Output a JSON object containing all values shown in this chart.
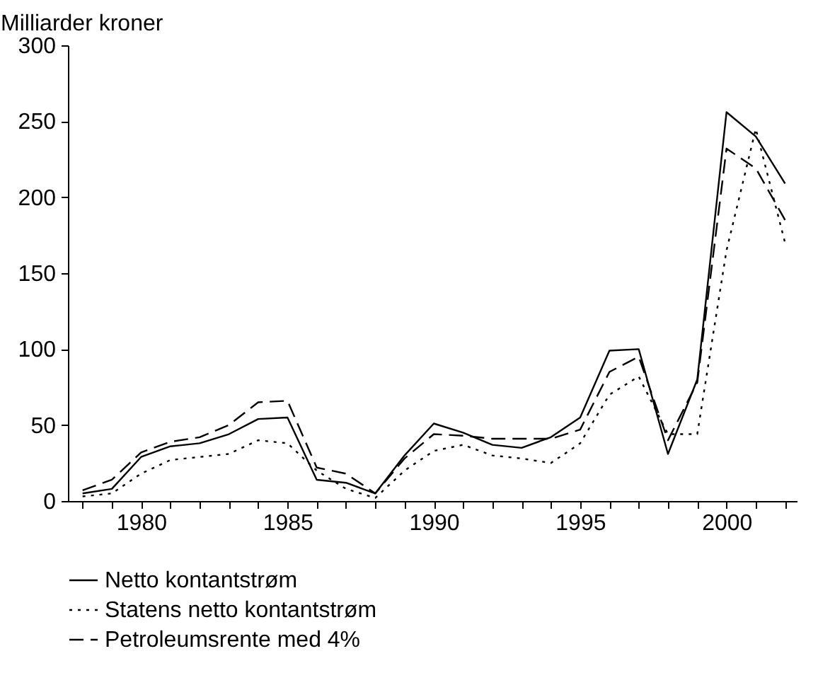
{
  "chart_data": {
    "type": "line",
    "ylabel": "Milliarder kroner",
    "x": [
      1978,
      1979,
      1980,
      1981,
      1982,
      1983,
      1984,
      1985,
      1986,
      1987,
      1988,
      1989,
      1990,
      1991,
      1992,
      1993,
      1994,
      1995,
      1996,
      1997,
      1998,
      1999,
      2000,
      2001,
      2002
    ],
    "series": [
      {
        "name": "Netto kontantstrøm",
        "color": "#000000",
        "line_style": "solid",
        "values": [
          5,
          8,
          29,
          36,
          38,
          44,
          54,
          55,
          14,
          12,
          5,
          30,
          51,
          45,
          37,
          35,
          42,
          55,
          99,
          100,
          31,
          80,
          256,
          240,
          209
        ]
      },
      {
        "name": "Statens netto kontantstrøm",
        "color": "#000000",
        "line_style": "dotted",
        "values": [
          3,
          5,
          18,
          27,
          29,
          31,
          40,
          38,
          20,
          8,
          2,
          20,
          33,
          37,
          30,
          28,
          25,
          38,
          70,
          82,
          44,
          44,
          165,
          245,
          170
        ]
      },
      {
        "name": "Petroleumsrente med 4%",
        "color": "#000000",
        "line_style": "dashed",
        "values": [
          7,
          14,
          32,
          39,
          42,
          50,
          65,
          66,
          22,
          18,
          5,
          28,
          44,
          43,
          41,
          41,
          41,
          47,
          85,
          95,
          40,
          78,
          232,
          219,
          185
        ]
      }
    ],
    "xlim": [
      1977.5,
      2002.4
    ],
    "xticks": [
      {
        "value": 1978,
        "label": null
      },
      {
        "value": 1979,
        "label": null
      },
      1980,
      {
        "value": 1981,
        "label": null
      },
      {
        "value": 1982,
        "label": null
      },
      {
        "value": 1983,
        "label": null
      },
      {
        "value": 1984,
        "label": null
      },
      1985,
      {
        "value": 1986,
        "label": null
      },
      {
        "value": 1987,
        "label": null
      },
      {
        "value": 1988,
        "label": null
      },
      {
        "value": 1989,
        "label": null
      },
      1990,
      {
        "value": 1991,
        "label": null
      },
      {
        "value": 1992,
        "label": null
      },
      {
        "value": 1993,
        "label": null
      },
      {
        "value": 1994,
        "label": null
      },
      1995,
      {
        "value": 1996,
        "label": null
      },
      {
        "value": 1997,
        "label": null
      },
      {
        "value": 1998,
        "label": null
      },
      {
        "value": 1999,
        "label": null
      },
      2000,
      {
        "value": 2001,
        "label": null
      },
      {
        "value": 2002,
        "label": null
      }
    ],
    "ylim": [
      0,
      300
    ],
    "yticks": [
      0,
      50,
      100,
      150,
      200,
      250,
      300
    ],
    "grid": false,
    "legend": "bottom",
    "marker": "none"
  }
}
